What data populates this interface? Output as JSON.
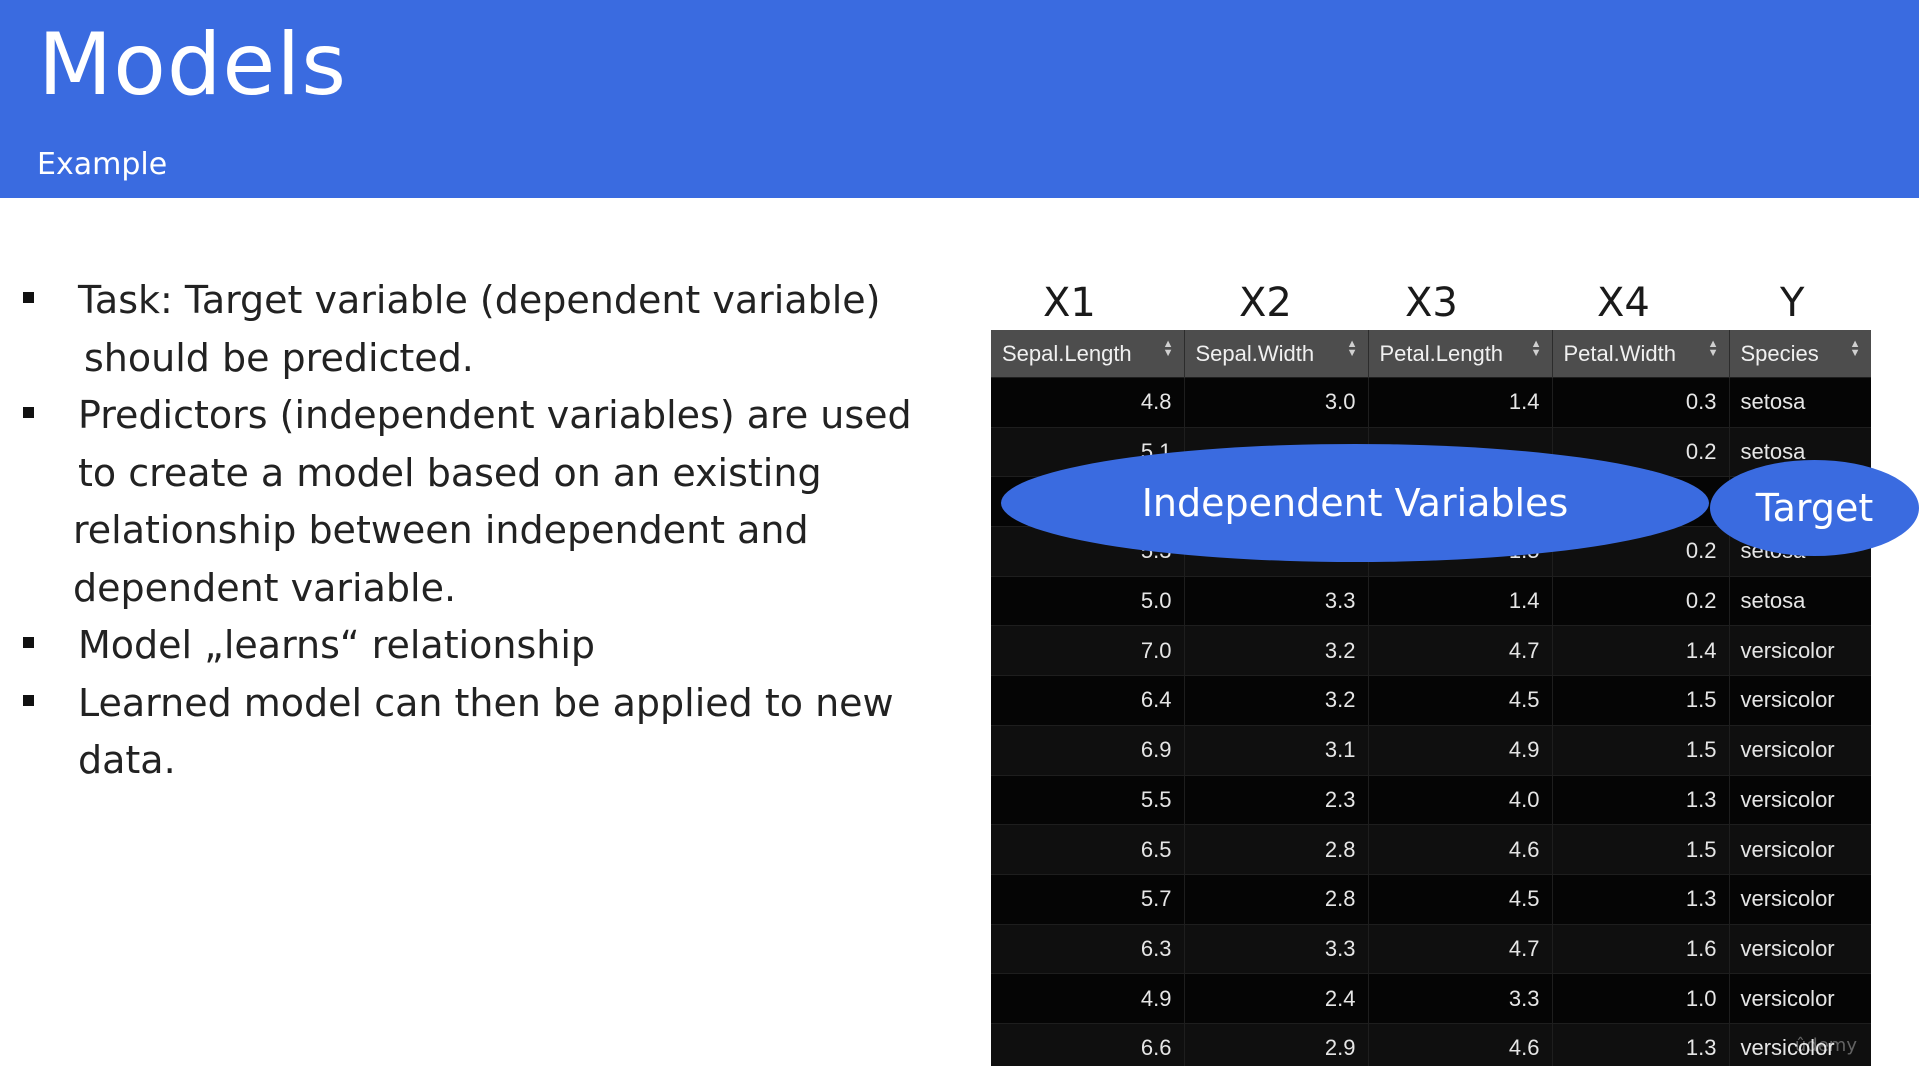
{
  "header": {
    "title": "Models",
    "subtitle": "Example"
  },
  "bullets": [
    {
      "lines": [
        "Task: Target variable (dependent variable)",
        "should be predicted."
      ]
    },
    {
      "lines": [
        "Predictors (independent variables) are used",
        "to create a model based on an existing",
        "relationship between independent and",
        "dependent variable."
      ]
    },
    {
      "lines": [
        "Model „learns“ relationship"
      ]
    },
    {
      "lines": [
        "Learned model can then be applied to new",
        "data."
      ]
    }
  ],
  "column_labels": [
    "X1",
    "X2",
    "X3",
    "X4",
    "Y"
  ],
  "table": {
    "headers": [
      "Sepal.Length",
      "Sepal.Width",
      "Petal.Length",
      "Petal.Width",
      "Species"
    ],
    "sort_icon": "sort-updown-icon",
    "rows": [
      [
        "4.8",
        "3.0",
        "1.4",
        "0.3",
        "setosa"
      ],
      [
        "5.1",
        "",
        "",
        "0.2",
        "setosa"
      ],
      [
        "",
        "",
        "",
        "",
        ""
      ],
      [
        "5.3",
        "",
        "1.5",
        "0.2",
        "setosa"
      ],
      [
        "5.0",
        "3.3",
        "1.4",
        "0.2",
        "setosa"
      ],
      [
        "7.0",
        "3.2",
        "4.7",
        "1.4",
        "versicolor"
      ],
      [
        "6.4",
        "3.2",
        "4.5",
        "1.5",
        "versicolor"
      ],
      [
        "6.9",
        "3.1",
        "4.9",
        "1.5",
        "versicolor"
      ],
      [
        "5.5",
        "2.3",
        "4.0",
        "1.3",
        "versicolor"
      ],
      [
        "6.5",
        "2.8",
        "4.6",
        "1.5",
        "versicolor"
      ],
      [
        "5.7",
        "2.8",
        "4.5",
        "1.3",
        "versicolor"
      ],
      [
        "6.3",
        "3.3",
        "4.7",
        "1.6",
        "versicolor"
      ],
      [
        "4.9",
        "2.4",
        "3.3",
        "1.0",
        "versicolor"
      ],
      [
        "6.6",
        "2.9",
        "4.6",
        "1.3",
        "versicolor"
      ]
    ]
  },
  "overlays": {
    "independent_label": "Independent Variables",
    "target_label": "Target"
  },
  "watermark": "ûdemy",
  "colors": {
    "accent": "#3a6be0",
    "table_bg": "#0b0b0b",
    "table_header": "#4d4d4d"
  }
}
